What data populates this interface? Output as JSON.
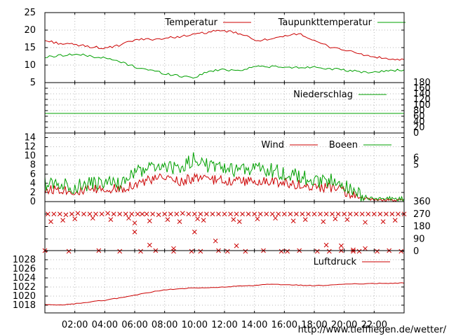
{
  "x_axis": {
    "tick_labels": [
      "02:00",
      "04:00",
      "06:00",
      "08:00",
      "10:00",
      "12:00",
      "14:00",
      "16:00",
      "18:00",
      "20:00",
      "22:00"
    ],
    "range_hours": [
      0,
      24
    ]
  },
  "footer_url": "http://www.tiefflie­gen.de/wetter/",
  "colors": {
    "red": "#cc0000",
    "green": "#00a000",
    "grid": "#b8b8b8"
  },
  "chart_data": [
    {
      "type": "line",
      "panel": "temperature",
      "ylim": [
        5,
        25
      ],
      "y_ticks": [
        "5",
        "10",
        "15",
        "20",
        "25"
      ],
      "x": [
        0,
        1,
        2,
        3,
        4,
        5,
        6,
        7,
        8,
        9,
        10,
        11,
        12,
        13,
        14,
        15,
        16,
        17,
        18,
        19,
        20,
        21,
        22,
        23,
        24
      ],
      "series": [
        {
          "name": "Temperatur",
          "color": "#cc0000",
          "values": [
            17,
            16.2,
            15.8,
            15.3,
            14.8,
            15.6,
            17.2,
            17.4,
            17.6,
            18.2,
            18.7,
            19.5,
            19.8,
            19.0,
            17.2,
            17.2,
            18.1,
            19.2,
            16.8,
            15.3,
            14.4,
            13.2,
            12.3,
            11.7,
            11.5
          ]
        },
        {
          "name": "Taupunkttemperatur",
          "color": "#00a000",
          "values": [
            12.2,
            12.8,
            13.1,
            12.6,
            12.0,
            11.0,
            9.5,
            8.6,
            7.6,
            6.9,
            6.5,
            8.3,
            8.7,
            8.5,
            9.6,
            9.6,
            9.3,
            9.3,
            9.5,
            9.0,
            8.5,
            8.1,
            7.9,
            8.5,
            8.6
          ]
        }
      ],
      "legend_placement": "top-right"
    },
    {
      "type": "line",
      "panel": "precipitation",
      "ylim": [
        0,
        180
      ],
      "y_ticks": [
        "0",
        "20",
        "40",
        "60",
        "80",
        "100",
        "120",
        "140",
        "160",
        "180"
      ],
      "x": [
        0,
        24
      ],
      "series": [
        {
          "name": "Niederschlag",
          "color": "#00a000",
          "values": [
            70,
            70
          ]
        }
      ],
      "legend_placement": "top-right"
    },
    {
      "type": "line",
      "panel": "wind",
      "ylim": [
        0,
        15
      ],
      "y_ticks": [
        "0",
        "2",
        "4",
        "6",
        "8",
        "10",
        "12",
        "14"
      ],
      "y_ticks_right": [
        "5",
        "6"
      ],
      "x": [
        0,
        1,
        2,
        3,
        4,
        5,
        6,
        7,
        8,
        9,
        10,
        11,
        12,
        13,
        14,
        15,
        16,
        17,
        18,
        19,
        20,
        21,
        22,
        23,
        24
      ],
      "series": [
        {
          "name": "Wind",
          "color": "#cc0000",
          "values": [
            2.5,
            2.8,
            2.2,
            2.5,
            2.7,
            2.8,
            3.8,
            4.7,
            5.2,
            4.5,
            5.1,
            4.8,
            4.6,
            4.5,
            4.4,
            4.3,
            4.2,
            3.7,
            3.0,
            3.2,
            2.2,
            0.8,
            0.3,
            0.3,
            0.4
          ]
        },
        {
          "name": "Boeen",
          "color": "#00a000",
          "values": [
            3.9,
            4.0,
            3.2,
            3.8,
            4.1,
            3.9,
            6.2,
            7.4,
            7.8,
            6.9,
            9.6,
            7.5,
            7.0,
            7.1,
            7.3,
            6.9,
            6.2,
            5.8,
            4.3,
            4.8,
            3.6,
            1.5,
            0.4,
            0.7,
            0.6
          ]
        }
      ],
      "legend_placement": "top-right"
    },
    {
      "type": "scatter",
      "panel": "wind_direction",
      "ylim": [
        0,
        360
      ],
      "y_ticks_right": [
        "0",
        "90",
        "180",
        "270",
        "360"
      ],
      "marker": "x",
      "color": "#cc0000",
      "x": [
        0.2,
        0.6,
        1.0,
        1.4,
        1.8,
        2.2,
        2.6,
        3.0,
        3.4,
        3.8,
        4.2,
        4.6,
        5.0,
        5.4,
        5.8,
        6.2,
        6.5,
        6.8,
        7.2,
        7.6,
        8.0,
        8.4,
        8.8,
        9.2,
        9.6,
        10.0,
        10.4,
        10.8,
        11.2,
        11.6,
        12.0,
        12.4,
        12.8,
        13.2,
        13.6,
        14.0,
        14.4,
        14.8,
        15.2,
        15.6,
        16.0,
        16.4,
        16.8,
        17.2,
        17.6,
        18.0,
        18.4,
        18.8,
        19.2,
        19.6,
        20.0,
        20.4,
        20.8,
        21.2,
        21.6,
        22.0,
        22.4,
        22.8,
        23.2,
        23.6,
        24.0,
        0.4,
        1.2,
        2.0,
        3.2,
        4.4,
        5.6,
        6.0,
        7.0,
        8.2,
        9.0,
        10.2,
        10.6,
        12.6,
        13.0,
        14.2,
        15.4,
        16.6,
        17.4,
        18.6,
        19.4,
        20.2,
        21.4,
        22.6,
        23.4,
        0.0,
        1.6,
        3.6,
        5.0,
        6.4,
        7.4,
        8.6,
        9.8,
        10.4,
        11.6,
        12.2,
        13.4,
        14.6,
        15.8,
        16.2,
        17.0,
        18.2,
        19.0,
        19.8,
        20.6,
        21.0,
        22.2,
        23.0,
        23.8,
        6.0,
        7.0,
        8.6,
        10.0,
        11.4,
        12.8,
        18.8,
        19.8,
        20.6,
        21.4
      ],
      "values": [
        270,
        270,
        270,
        265,
        270,
        275,
        270,
        270,
        270,
        270,
        275,
        270,
        270,
        270,
        270,
        270,
        270,
        270,
        270,
        265,
        270,
        270,
        270,
        275,
        270,
        270,
        270,
        270,
        270,
        270,
        270,
        270,
        270,
        270,
        270,
        270,
        270,
        270,
        270,
        270,
        270,
        270,
        270,
        270,
        270,
        270,
        270,
        270,
        270,
        270,
        270,
        270,
        270,
        270,
        270,
        270,
        270,
        270,
        270,
        270,
        270,
        215,
        225,
        235,
        240,
        230,
        240,
        205,
        220,
        230,
        215,
        235,
        225,
        230,
        215,
        235,
        240,
        220,
        230,
        215,
        235,
        230,
        210,
        215,
        225,
        5,
        0,
        5,
        0,
        0,
        5,
        0,
        0,
        0,
        5,
        0,
        0,
        5,
        0,
        0,
        5,
        0,
        0,
        5,
        0,
        0,
        0,
        5,
        0,
        140,
        45,
        20,
        140,
        75,
        40,
        45,
        40,
        10,
        20
      ],
      "legend_placement": "none"
    },
    {
      "type": "line",
      "panel": "pressure",
      "ylim": [
        1016.3,
        1030
      ],
      "y_ticks": [
        "1018",
        "1020",
        "1022",
        "1024",
        "1026",
        "1028"
      ],
      "x": [
        0,
        1,
        2,
        3,
        4,
        5,
        6,
        7,
        8,
        9,
        10,
        11,
        12,
        13,
        14,
        15,
        16,
        17,
        18,
        19,
        20,
        21,
        22,
        23,
        24
      ],
      "series": [
        {
          "name": "Luftdruck",
          "color": "#cc0000",
          "values": [
            1018.1,
            1018.0,
            1018.3,
            1018.7,
            1019.1,
            1019.6,
            1020.2,
            1020.8,
            1021.4,
            1021.6,
            1021.8,
            1021.8,
            1022.0,
            1022.2,
            1022.3,
            1022.6,
            1022.5,
            1022.4,
            1022.3,
            1022.4,
            1022.6,
            1022.7,
            1022.8,
            1022.8,
            1022.9
          ]
        }
      ],
      "legend_placement": "top-right"
    }
  ]
}
